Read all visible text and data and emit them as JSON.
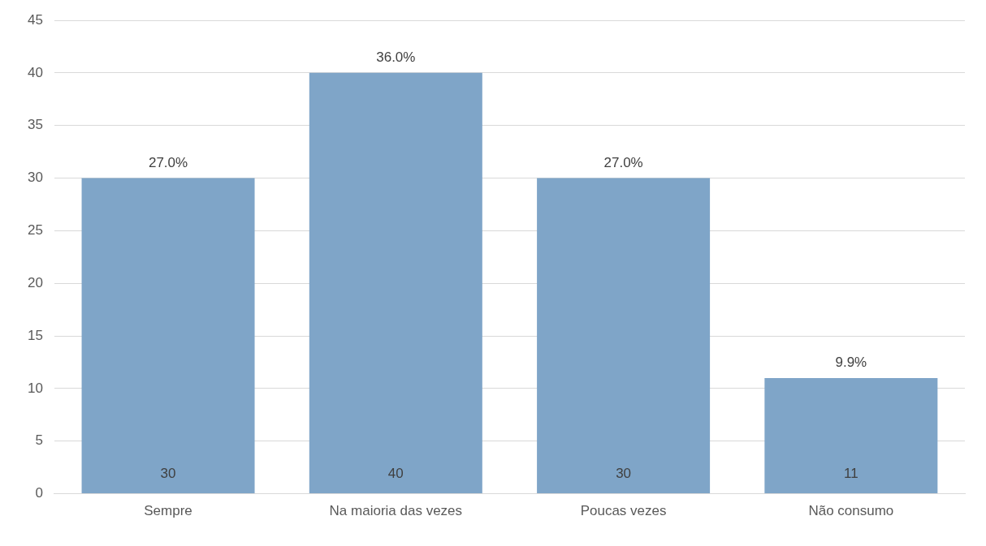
{
  "chart_data": {
    "type": "bar",
    "categories": [
      "Sempre",
      "Na maioria das vezes",
      "Poucas vezes",
      "Não consumo"
    ],
    "values": [
      30,
      40,
      30,
      11
    ],
    "color": "#7fa5c8",
    "data_labels": true,
    "annotations": [
      {
        "text": "27.0%",
        "x": "Sempre",
        "y": 30
      },
      {
        "text": "36.0%",
        "x": "Na maioria das vezes",
        "y": 40
      },
      {
        "text": "27.0%",
        "x": "Poucas vezes",
        "y": 30
      },
      {
        "text": "9.9%",
        "x": "Não consumo",
        "y": 11
      }
    ],
    "ylim": [
      0,
      45
    ],
    "yticks": [
      0,
      5,
      10,
      15,
      20,
      25,
      30,
      35,
      40,
      45
    ],
    "grid": "y",
    "legend": false
  }
}
